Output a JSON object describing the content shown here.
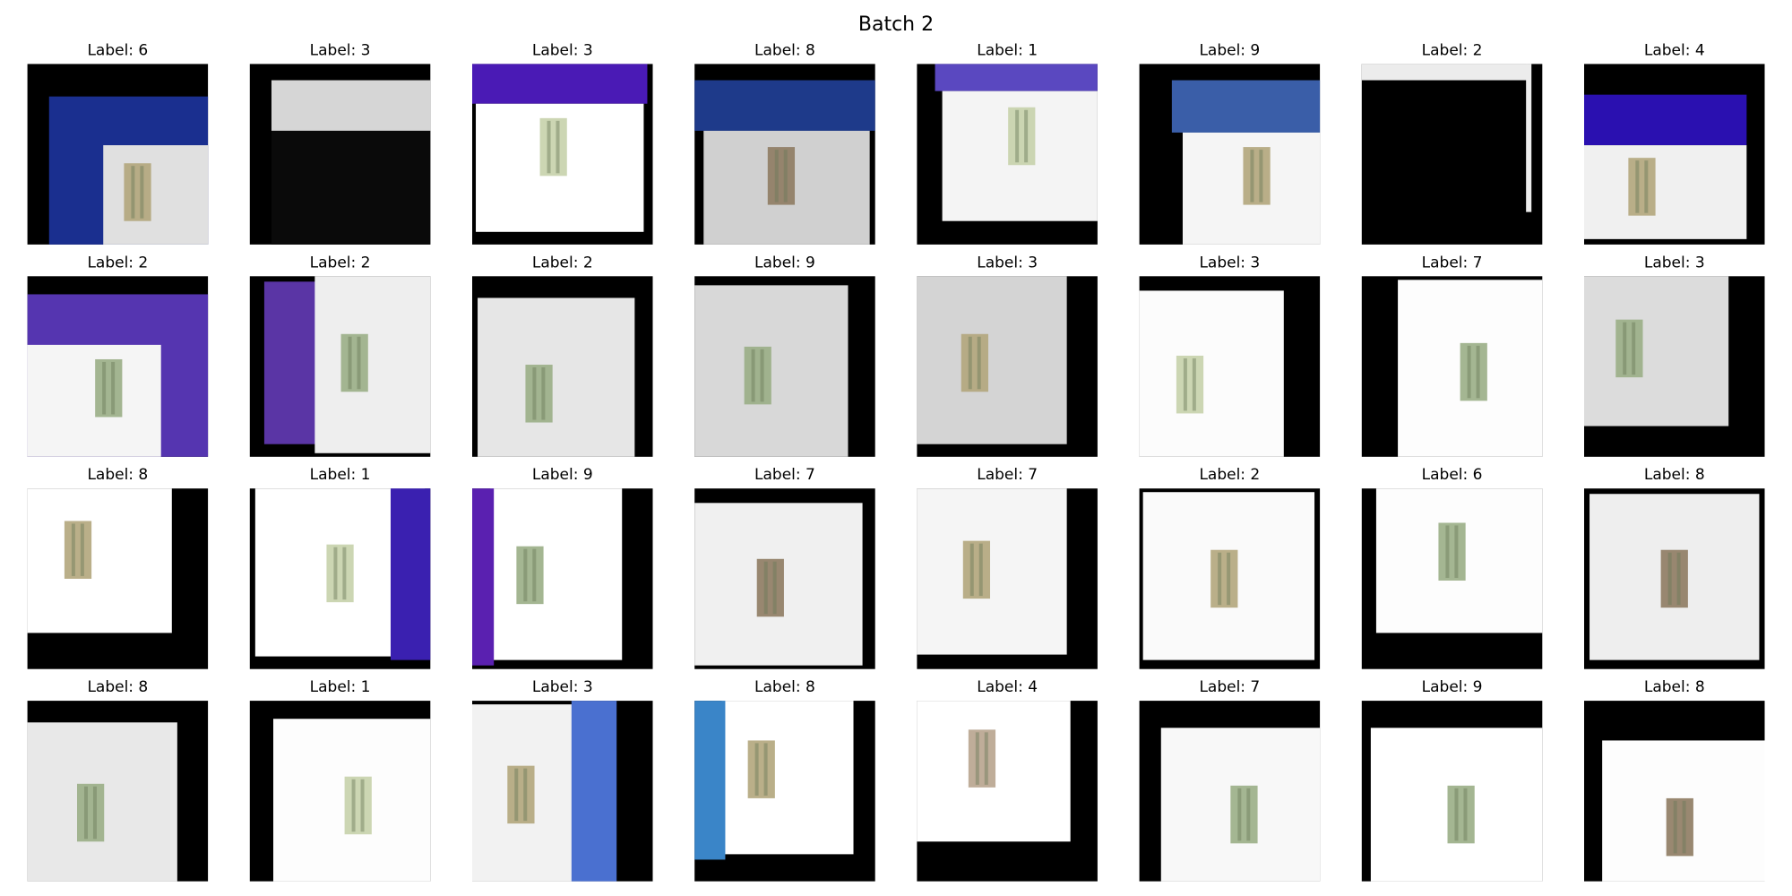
{
  "header": {
    "title": "Batch 2"
  },
  "panels": [
    {
      "title": "Label: 6"
    },
    {
      "title": "Label: 3"
    },
    {
      "title": "Label: 3"
    },
    {
      "title": "Label: 8"
    },
    {
      "title": "Label: 1"
    },
    {
      "title": "Label: 9"
    },
    {
      "title": "Label: 2"
    },
    {
      "title": "Label: 4"
    },
    {
      "title": "Label: 2"
    },
    {
      "title": "Label: 2"
    },
    {
      "title": "Label: 2"
    },
    {
      "title": "Label: 9"
    },
    {
      "title": "Label: 3"
    },
    {
      "title": "Label: 3"
    },
    {
      "title": "Label: 7"
    },
    {
      "title": "Label: 3"
    },
    {
      "title": "Label: 8"
    },
    {
      "title": "Label: 1"
    },
    {
      "title": "Label: 9"
    },
    {
      "title": "Label: 7"
    },
    {
      "title": "Label: 7"
    },
    {
      "title": "Label: 2"
    },
    {
      "title": "Label: 6"
    },
    {
      "title": "Label: 8"
    },
    {
      "title": "Label: 8"
    },
    {
      "title": "Label: 1"
    },
    {
      "title": "Label: 3"
    },
    {
      "title": "Label: 8"
    },
    {
      "title": "Label: 4"
    },
    {
      "title": "Label: 7"
    },
    {
      "title": "Label: 9"
    },
    {
      "title": "Label: 8"
    }
  ]
}
